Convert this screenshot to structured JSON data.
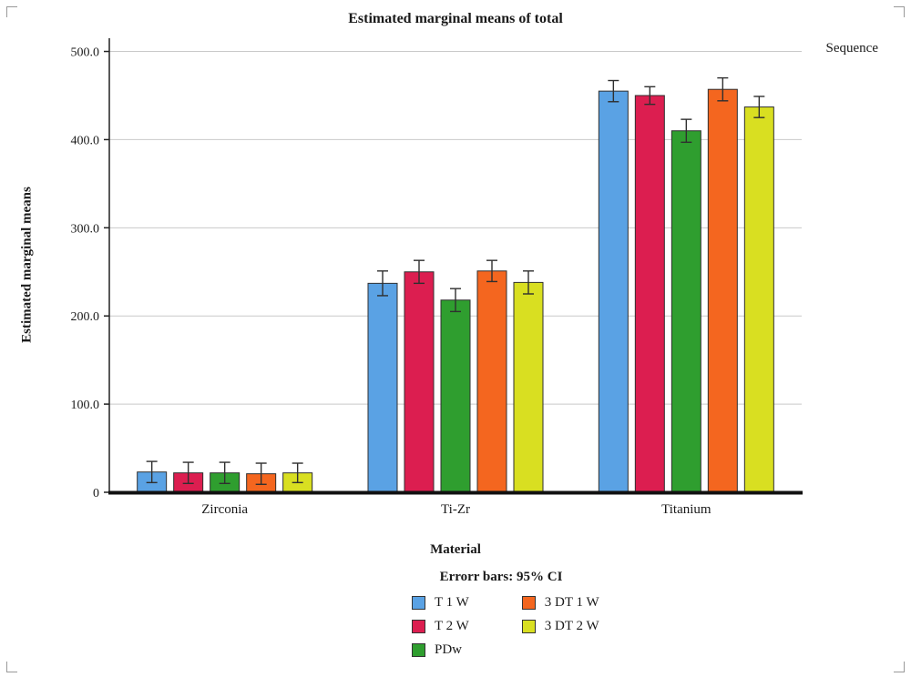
{
  "chart_data": {
    "type": "bar",
    "title": "Estimated marginal means of total",
    "legend_title": "Sequence",
    "xlabel": "Material",
    "ylabel": "Estimated marginal means",
    "error_note": "Errorr bars: 95% CI",
    "legend_position": "bottom",
    "grid": "horizontal",
    "ylim": [
      0,
      515
    ],
    "yticks": [
      0,
      100,
      200,
      300,
      400,
      500
    ],
    "ytick_labels": [
      "0",
      "100.0",
      "200.0",
      "300.0",
      "400.0",
      "500.0"
    ],
    "categories": [
      "Zirconia",
      "Ti-Zr",
      "Titanium"
    ],
    "series": [
      {
        "name": "T 1 W",
        "color": "#5aa2e4",
        "values": [
          23,
          237,
          455
        ],
        "errors": [
          12,
          14,
          12
        ]
      },
      {
        "name": "T 2 W",
        "color": "#dc1e50",
        "values": [
          22,
          250,
          450
        ],
        "errors": [
          12,
          13,
          10
        ]
      },
      {
        "name": "PDw",
        "color": "#2f9e2f",
        "values": [
          22,
          218,
          410
        ],
        "errors": [
          12,
          13,
          13
        ]
      },
      {
        "name": "3 DT 1 W",
        "color": "#f4661f",
        "values": [
          21,
          251,
          457
        ],
        "errors": [
          12,
          12,
          13
        ]
      },
      {
        "name": "3 DT 2 W",
        "color": "#d9df21",
        "values": [
          22,
          238,
          437
        ],
        "errors": [
          11,
          13,
          12
        ]
      }
    ],
    "colors": {
      "bar_stroke": "#2f2f2f",
      "gridline": "#c9c9c9",
      "axis": "#222222",
      "baseline": "#111111"
    }
  }
}
